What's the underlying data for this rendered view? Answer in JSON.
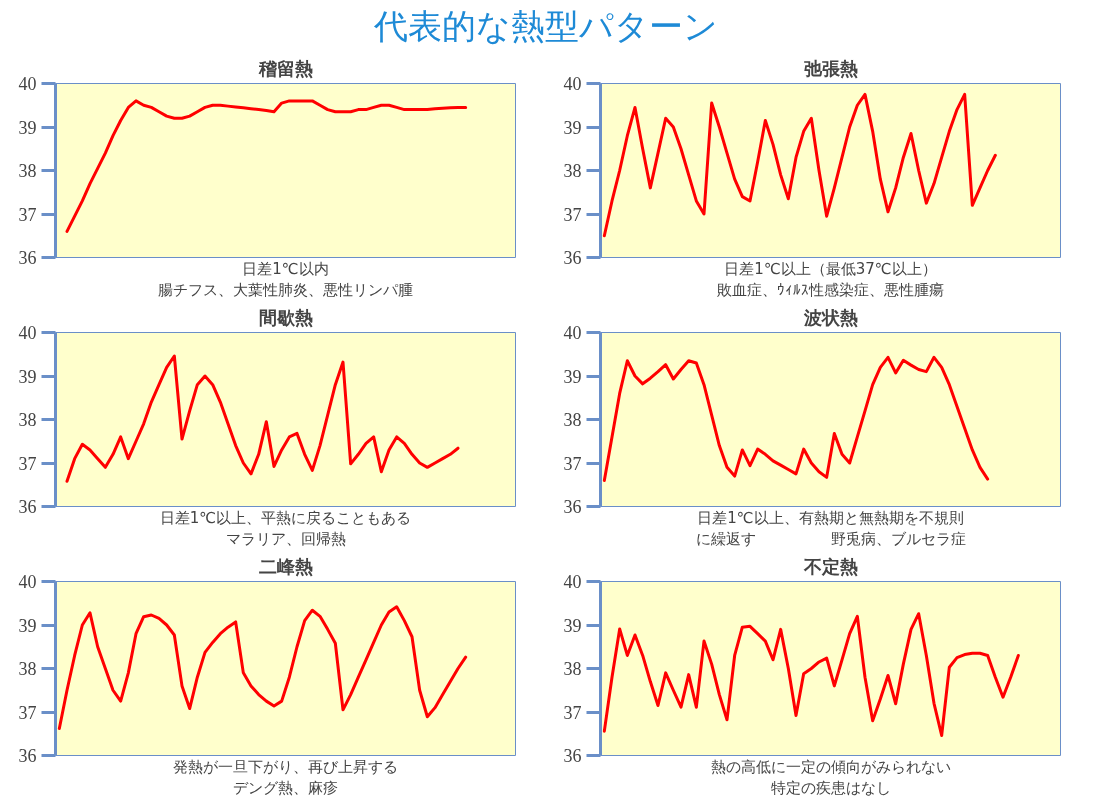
{
  "chart_data": [
    {
      "type": "other",
      "title": "代表的な熱型パターン",
      "color": "#1e8ad6"
    },
    {
      "type": "line",
      "title": "稽留熱",
      "color": "#ff0000",
      "ylim": [
        36,
        40
      ],
      "yticks": [
        36,
        37,
        38,
        39,
        40
      ],
      "tick_labels": "y",
      "annotations": [
        "日差1℃以内",
        "腸チフス、大葉性肺炎、悪性リンパ腫"
      ],
      "categories": [
        null,
        null,
        null,
        null,
        null,
        null,
        null,
        null,
        null,
        null,
        null,
        null,
        null,
        null,
        null,
        null,
        null,
        null,
        null,
        null,
        null,
        null,
        null,
        null,
        null,
        null,
        null,
        null,
        null,
        null,
        null,
        null,
        null,
        null,
        null,
        null,
        null,
        null,
        null,
        null,
        null,
        null,
        null,
        null,
        null,
        null,
        null,
        null,
        null,
        null,
        null,
        null,
        null,
        null,
        null,
        null,
        null,
        null,
        null,
        null
      ],
      "values": [
        null,
        36.6,
        36.95,
        37.3,
        37.7,
        38.05,
        38.4,
        38.8,
        39.15,
        39.45,
        39.6,
        39.5,
        39.45,
        39.35,
        39.25,
        39.2,
        39.2,
        39.25,
        39.35,
        39.45,
        39.5,
        39.5,
        39.48,
        39.46,
        39.44,
        39.42,
        39.4,
        39.38,
        39.35,
        39.55,
        39.6,
        39.6,
        39.6,
        39.6,
        39.5,
        39.4,
        39.35,
        39.35,
        39.35,
        39.4,
        39.4,
        39.45,
        39.5,
        39.5,
        39.45,
        39.4,
        39.4,
        39.4,
        39.4,
        39.42,
        39.43,
        39.44,
        39.45,
        39.45,
        null,
        null,
        null,
        null,
        null,
        null
      ]
    },
    {
      "type": "line",
      "title": "弛張熱",
      "color": "#ff0000",
      "ylim": [
        36,
        40
      ],
      "yticks": [
        36,
        37,
        38,
        39,
        40
      ],
      "tick_labels": "y",
      "annotations": [
        "日差1℃以上（最低37℃以上）",
        "敗血症、ｳｨﾙｽ性感染症、悪性腫瘍"
      ],
      "categories": [
        null,
        null,
        null,
        null,
        null,
        null,
        null,
        null,
        null,
        null,
        null,
        null,
        null,
        null,
        null,
        null,
        null,
        null,
        null,
        null,
        null,
        null,
        null,
        null,
        null,
        null,
        null,
        null,
        null,
        null,
        null,
        null,
        null,
        null,
        null,
        null,
        null,
        null,
        null,
        null,
        null,
        null,
        null,
        null,
        null,
        null,
        null,
        null,
        null,
        null,
        null,
        null,
        null,
        null,
        null,
        null,
        null,
        null,
        null,
        null
      ],
      "values": [
        36.5,
        37.3,
        38.0,
        38.8,
        39.45,
        38.5,
        37.6,
        38.4,
        39.2,
        39.0,
        38.5,
        37.9,
        37.3,
        37.0,
        39.55,
        39.0,
        38.4,
        37.8,
        37.4,
        37.3,
        38.2,
        39.15,
        38.6,
        37.9,
        37.35,
        38.3,
        38.9,
        39.2,
        38.0,
        36.95,
        37.6,
        38.3,
        39.0,
        39.5,
        39.75,
        38.9,
        37.8,
        37.05,
        37.6,
        38.3,
        38.85,
        38.0,
        37.25,
        37.7,
        38.3,
        38.9,
        39.4,
        39.75,
        37.2,
        37.6,
        38.0,
        38.35,
        null,
        null,
        null,
        null,
        null,
        null,
        null,
        null
      ]
    },
    {
      "type": "line",
      "title": "間歇熱",
      "color": "#ff0000",
      "ylim": [
        36,
        40
      ],
      "yticks": [
        36,
        37,
        38,
        39,
        40
      ],
      "tick_labels": "y",
      "annotations": [
        "日差1℃以上、平熱に戻ることもある",
        "マラリア、回帰熱"
      ],
      "categories": [
        null,
        null,
        null,
        null,
        null,
        null,
        null,
        null,
        null,
        null,
        null,
        null,
        null,
        null,
        null,
        null,
        null,
        null,
        null,
        null,
        null,
        null,
        null,
        null,
        null,
        null,
        null,
        null,
        null,
        null,
        null,
        null,
        null,
        null,
        null,
        null,
        null,
        null,
        null,
        null,
        null,
        null,
        null,
        null,
        null,
        null,
        null,
        null,
        null,
        null,
        null,
        null,
        null,
        null,
        null,
        null,
        null,
        null,
        null,
        null
      ],
      "values": [
        null,
        36.58,
        37.1,
        37.43,
        37.3,
        37.1,
        36.9,
        37.2,
        37.6,
        37.1,
        37.5,
        37.9,
        38.4,
        38.8,
        39.2,
        39.46,
        37.55,
        38.2,
        38.8,
        39.0,
        38.8,
        38.4,
        37.9,
        37.4,
        37.0,
        36.75,
        37.2,
        37.95,
        36.92,
        37.3,
        37.6,
        37.68,
        37.2,
        36.83,
        37.4,
        38.1,
        38.8,
        39.32,
        36.98,
        37.2,
        37.45,
        37.6,
        36.8,
        37.3,
        37.6,
        37.45,
        37.2,
        37.0,
        36.9,
        37.0,
        37.1,
        37.2,
        37.34,
        null,
        null,
        null,
        null,
        null,
        null,
        null
      ]
    },
    {
      "type": "line",
      "title": "波状熱",
      "color": "#ff0000",
      "ylim": [
        36,
        40
      ],
      "yticks": [
        36,
        37,
        38,
        39,
        40
      ],
      "tick_labels": "y",
      "annotations": [
        "日差1℃以上、有熱期と無熱期を不規則",
        "に繰返す　　　　　野兎病、ブルセラ症"
      ],
      "categories": [
        null,
        null,
        null,
        null,
        null,
        null,
        null,
        null,
        null,
        null,
        null,
        null,
        null,
        null,
        null,
        null,
        null,
        null,
        null,
        null,
        null,
        null,
        null,
        null,
        null,
        null,
        null,
        null,
        null,
        null,
        null,
        null,
        null,
        null,
        null,
        null,
        null,
        null,
        null,
        null,
        null,
        null,
        null,
        null,
        null,
        null,
        null,
        null,
        null,
        null,
        null,
        null,
        null,
        null,
        null,
        null,
        null,
        null,
        null,
        null
      ],
      "values": [
        36.6,
        37.6,
        38.6,
        39.35,
        39.0,
        38.82,
        38.95,
        39.1,
        39.26,
        38.93,
        39.15,
        39.35,
        39.3,
        38.8,
        38.1,
        37.4,
        36.9,
        36.7,
        37.3,
        36.94,
        37.32,
        37.2,
        37.05,
        36.95,
        36.85,
        36.75,
        37.32,
        37.0,
        36.8,
        36.67,
        37.68,
        37.2,
        37.0,
        37.6,
        38.2,
        38.8,
        39.2,
        39.43,
        39.07,
        39.36,
        39.25,
        39.15,
        39.1,
        39.43,
        39.2,
        38.8,
        38.3,
        37.8,
        37.3,
        36.9,
        36.63,
        null,
        null,
        null,
        null,
        null,
        null,
        null,
        null,
        null
      ]
    },
    {
      "type": "line",
      "title": "二峰熱",
      "color": "#ff0000",
      "ylim": [
        36,
        40
      ],
      "yticks": [
        36,
        37,
        38,
        39,
        40
      ],
      "tick_labels": "y",
      "annotations": [
        "発熱が一旦下がり、再び上昇する",
        "デング熱、麻疹"
      ],
      "categories": [
        null,
        null,
        null,
        null,
        null,
        null,
        null,
        null,
        null,
        null,
        null,
        null,
        null,
        null,
        null,
        null,
        null,
        null,
        null,
        null,
        null,
        null,
        null,
        null,
        null,
        null,
        null,
        null,
        null,
        null,
        null,
        null,
        null,
        null,
        null,
        null,
        null,
        null,
        null,
        null,
        null,
        null,
        null,
        null,
        null,
        null,
        null,
        null,
        null,
        null,
        null,
        null,
        null,
        null,
        null,
        null,
        null,
        null,
        null,
        null
      ],
      "values": [
        36.62,
        37.5,
        38.3,
        39.0,
        39.28,
        38.5,
        38.0,
        37.5,
        37.25,
        37.9,
        38.8,
        39.19,
        39.23,
        39.15,
        39.0,
        38.77,
        37.6,
        37.08,
        37.8,
        38.37,
        38.6,
        38.8,
        38.95,
        39.07,
        37.9,
        37.6,
        37.4,
        37.25,
        37.14,
        37.25,
        37.8,
        38.5,
        39.1,
        39.34,
        39.2,
        38.9,
        38.58,
        37.05,
        37.4,
        37.8,
        38.2,
        38.6,
        39.0,
        39.3,
        39.42,
        39.1,
        38.73,
        37.5,
        36.89,
        37.1,
        37.4,
        37.7,
        38.0,
        38.26,
        null,
        null,
        null,
        null,
        null,
        null
      ]
    },
    {
      "type": "line",
      "title": "不定熱",
      "color": "#ff0000",
      "ylim": [
        36,
        40
      ],
      "yticks": [
        36,
        37,
        38,
        39,
        40
      ],
      "tick_labels": "y",
      "annotations": [
        "熱の高低に一定の傾向がみられない",
        "特定の疾患はなし"
      ],
      "categories": [
        null,
        null,
        null,
        null,
        null,
        null,
        null,
        null,
        null,
        null,
        null,
        null,
        null,
        null,
        null,
        null,
        null,
        null,
        null,
        null,
        null,
        null,
        null,
        null,
        null,
        null,
        null,
        null,
        null,
        null,
        null,
        null,
        null,
        null,
        null,
        null,
        null,
        null,
        null,
        null,
        null,
        null,
        null,
        null,
        null,
        null,
        null,
        null,
        null,
        null,
        null,
        null,
        null,
        null,
        null,
        null,
        null,
        null,
        null,
        null
      ],
      "values": [
        36.56,
        37.8,
        38.91,
        38.3,
        38.77,
        38.3,
        37.7,
        37.15,
        37.9,
        37.5,
        37.11,
        37.86,
        37.11,
        38.63,
        38.1,
        37.4,
        36.82,
        38.3,
        38.95,
        38.97,
        38.8,
        38.63,
        38.2,
        38.9,
        38.0,
        36.92,
        37.88,
        38.0,
        38.15,
        38.24,
        37.6,
        38.2,
        38.8,
        39.2,
        37.8,
        36.8,
        37.3,
        37.84,
        37.19,
        38.1,
        38.9,
        39.26,
        38.3,
        37.2,
        36.46,
        38.03,
        38.25,
        38.32,
        38.35,
        38.35,
        38.3,
        37.8,
        37.34,
        37.8,
        38.3,
        null,
        null,
        null,
        null,
        null
      ]
    }
  ]
}
